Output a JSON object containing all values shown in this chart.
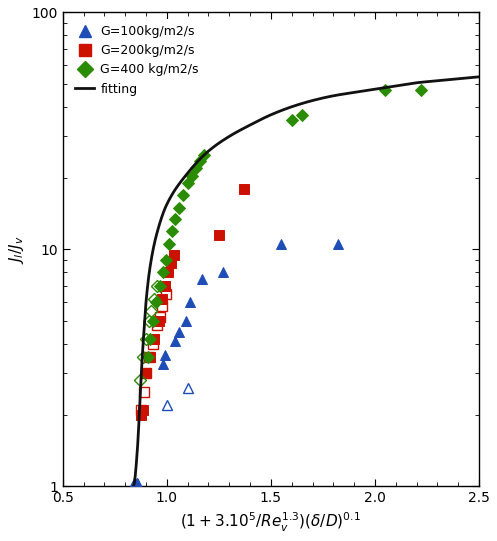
{
  "title": "",
  "xlabel": "$(\\mathbf{1+3.10^5/}\\mathbf{Re_v^{1.3}})(\\mathbf{\\delta/D})^{\\mathbf{0.1}}$",
  "ylabel": "$J_l/J_v$",
  "xlim": [
    0.5,
    2.5
  ],
  "ylim_log": [
    1,
    100
  ],
  "fitting_curve": {
    "color": "#111111",
    "linewidth": 2.0,
    "x_points": [
      0.84,
      0.845,
      0.85,
      0.855,
      0.86,
      0.865,
      0.87,
      0.875,
      0.88,
      0.89,
      0.9,
      0.92,
      0.95,
      1.0,
      1.1,
      1.2,
      1.3,
      1.4,
      1.5,
      1.6,
      1.7,
      1.8,
      1.9,
      2.0,
      2.1,
      2.2,
      2.3,
      2.4,
      2.5
    ],
    "y_points": [
      1.0,
      1.05,
      1.15,
      1.3,
      1.5,
      1.8,
      2.2,
      2.7,
      3.3,
      4.5,
      6.0,
      8.5,
      11.5,
      15.5,
      21.0,
      26.0,
      30.0,
      33.5,
      37.0,
      40.0,
      42.5,
      44.5,
      46.0,
      47.5,
      49.0,
      50.5,
      51.5,
      52.5,
      53.5
    ]
  },
  "series": [
    {
      "label": "G=100kg/m2/s",
      "color": "#1e4db7",
      "marker": "^",
      "filled": true,
      "points": [
        [
          0.84,
          1.03
        ],
        [
          0.855,
          1.03
        ],
        [
          0.98,
          3.3
        ],
        [
          0.99,
          3.6
        ],
        [
          1.04,
          4.1
        ],
        [
          1.06,
          4.5
        ],
        [
          1.09,
          5.0
        ],
        [
          1.11,
          6.0
        ],
        [
          1.17,
          7.5
        ],
        [
          1.27,
          8.0
        ],
        [
          1.55,
          10.5
        ],
        [
          1.82,
          10.5
        ]
      ]
    },
    {
      "label": "G=100kg/m2/s (open)",
      "color": "#1e4db7",
      "marker": "^",
      "filled": false,
      "points": [
        [
          0.858,
          1.03
        ],
        [
          1.0,
          2.2
        ],
        [
          1.1,
          2.6
        ]
      ]
    },
    {
      "label": "G=200kg/m2/s",
      "color": "#cc1100",
      "marker": "s",
      "filled": true,
      "points": [
        [
          0.875,
          2.0
        ],
        [
          0.885,
          2.1
        ],
        [
          0.9,
          3.0
        ],
        [
          0.92,
          3.5
        ],
        [
          0.94,
          4.2
        ],
        [
          0.96,
          5.0
        ],
        [
          0.975,
          6.2
        ],
        [
          0.99,
          7.0
        ],
        [
          1.005,
          8.0
        ],
        [
          1.02,
          8.8
        ],
        [
          1.035,
          9.5
        ],
        [
          1.25,
          11.5
        ],
        [
          1.37,
          18.0
        ]
      ]
    },
    {
      "label": "G=200kg/m2/s (open)",
      "color": "#cc1100",
      "marker": "s",
      "filled": false,
      "points": [
        [
          0.875,
          2.1
        ],
        [
          0.89,
          2.5
        ],
        [
          0.9,
          3.0
        ],
        [
          0.915,
          3.5
        ],
        [
          0.935,
          4.0
        ],
        [
          0.955,
          4.8
        ],
        [
          0.965,
          5.2
        ],
        [
          0.975,
          5.8
        ],
        [
          0.995,
          6.5
        ]
      ]
    },
    {
      "label": "G=400 kg/m2/s",
      "color": "#2a8c00",
      "marker": "D",
      "filled": true,
      "points": [
        [
          0.91,
          3.5
        ],
        [
          0.92,
          4.2
        ],
        [
          0.935,
          5.0
        ],
        [
          0.95,
          6.0
        ],
        [
          0.965,
          7.0
        ],
        [
          0.98,
          8.0
        ],
        [
          0.995,
          9.0
        ],
        [
          1.01,
          10.5
        ],
        [
          1.025,
          12.0
        ],
        [
          1.04,
          13.5
        ],
        [
          1.06,
          15.0
        ],
        [
          1.08,
          17.0
        ],
        [
          1.1,
          19.0
        ],
        [
          1.12,
          20.5
        ],
        [
          1.14,
          22.0
        ],
        [
          1.16,
          23.5
        ],
        [
          1.18,
          25.0
        ],
        [
          1.6,
          35.0
        ],
        [
          1.65,
          37.0
        ],
        [
          2.05,
          47.0
        ],
        [
          2.22,
          47.0
        ]
      ]
    },
    {
      "label": "G=400 kg/m2/s (open)",
      "color": "#2a8c00",
      "marker": "D",
      "filled": false,
      "points": [
        [
          0.87,
          2.8
        ],
        [
          0.885,
          3.5
        ],
        [
          0.9,
          4.2
        ],
        [
          0.915,
          5.0
        ],
        [
          0.925,
          5.5
        ],
        [
          0.94,
          6.2
        ],
        [
          0.955,
          7.0
        ]
      ]
    }
  ],
  "legend_items": [
    {
      "label": "G=100kg/m2/s",
      "color": "#1e4db7",
      "marker": "^"
    },
    {
      "label": "G=200kg/m2/s",
      "color": "#cc1100",
      "marker": "s"
    },
    {
      "label": "G=400 kg/m2/s",
      "color": "#2a8c00",
      "marker": "D"
    }
  ]
}
